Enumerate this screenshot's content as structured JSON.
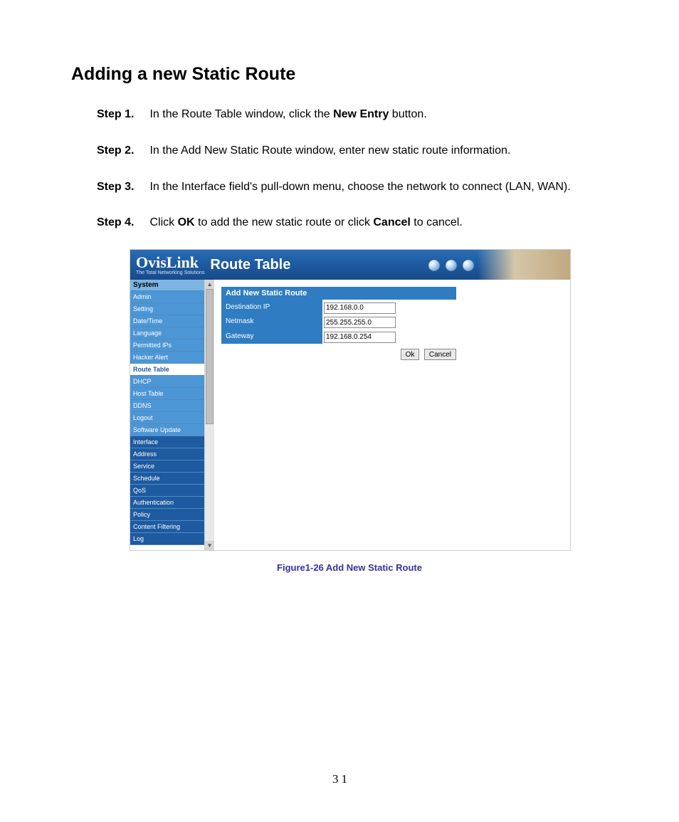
{
  "title": "Adding a new Static Route",
  "steps": [
    {
      "label": "Step 1.",
      "pre": "In the Route Table window, click the ",
      "bold1": "New Entry",
      "post": " button."
    },
    {
      "label": "Step 2.",
      "pre": "In the Add New Static Route window, enter new static route information.",
      "bold1": "",
      "post": ""
    },
    {
      "label": "Step 3.",
      "pre": "In the Interface field's pull-down menu, choose the network to connect (LAN, WAN).",
      "bold1": "",
      "post": ""
    },
    {
      "label": "Step 4.",
      "pre": "Click ",
      "bold1": "OK",
      "mid": " to add the new static route or click ",
      "bold2": "Cancel",
      "post": " to cancel."
    }
  ],
  "screenshot": {
    "logo_main": "OvisLink",
    "logo_sub": "The Total Networking Solutions",
    "page_title": "Route Table",
    "sidebar": {
      "group": "System",
      "items_top": [
        "Admin",
        "Setting",
        "Date/Time",
        "Language",
        "Permitted IPs",
        "Hacker Alert",
        "Route Table",
        "DHCP",
        "Host Table",
        "DDNS",
        "Logout",
        "Software Update"
      ],
      "sections": [
        "Interface",
        "Address",
        "Service",
        "Schedule",
        "QoS",
        "Authentication",
        "Policy",
        "Content Filtering",
        "Log"
      ],
      "active": "Route Table"
    },
    "form": {
      "header": "Add New Static Route",
      "rows": [
        {
          "label": "Destination IP",
          "value": "192.168.0.0"
        },
        {
          "label": "Netmask",
          "value": "255.255.255.0"
        },
        {
          "label": "Gateway",
          "value": "192.168.0.254"
        }
      ],
      "ok": "Ok",
      "cancel": "Cancel"
    }
  },
  "figure_caption": "Figure1-26    Add New Static Route",
  "page_number": "31"
}
